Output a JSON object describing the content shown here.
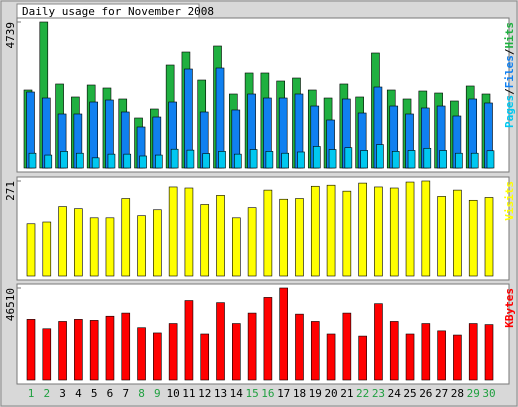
{
  "chart_data": [
    {
      "type": "bar",
      "title": "Daily usage for November 2008",
      "ylim": [
        0,
        4739
      ],
      "yticks": [
        4739
      ],
      "legend_separator": "/",
      "series": [
        {
          "name": "Pages",
          "color": "#00c8f0",
          "values": [
            480,
            420,
            540,
            480,
            330,
            450,
            450,
            390,
            420,
            610,
            580,
            470,
            540,
            450,
            600,
            540,
            480,
            520,
            700,
            600,
            660,
            570,
            760,
            540,
            570,
            640,
            570,
            480,
            480,
            560
          ]
        },
        {
          "name": "Files",
          "color": "#1080f0",
          "values": [
            2467,
            2272,
            1753,
            1753,
            2142,
            2207,
            1818,
            1331,
            1655,
            2142,
            3213,
            1818,
            3246,
            1883,
            2402,
            2272,
            2272,
            2402,
            2012,
            1558,
            2240,
            1785,
            2629,
            2012,
            1753,
            1948,
            2012,
            1688,
            2240,
            2110
          ]
        },
        {
          "name": "Hits",
          "color": "#20b040",
          "values": [
            2532,
            4739,
            2727,
            2305,
            2694,
            2597,
            2240,
            1623,
            1915,
            3343,
            3765,
            2856,
            3960,
            2402,
            3084,
            3084,
            2824,
            2921,
            2532,
            2272,
            2727,
            2305,
            3733,
            2532,
            2240,
            2499,
            2434,
            2175,
            2662,
            2402
          ]
        }
      ]
    },
    {
      "type": "bar",
      "ylim": [
        0,
        271
      ],
      "yticks": [
        271
      ],
      "series": [
        {
          "name": "Visits",
          "color": "#ffff00",
          "values": [
            149,
            154,
            198,
            192,
            166,
            166,
            221,
            172,
            189,
            254,
            251,
            204,
            230,
            166,
            195,
            245,
            219,
            221,
            256,
            259,
            242,
            265,
            254,
            251,
            268,
            271,
            227,
            245,
            216,
            224
          ]
        }
      ]
    },
    {
      "type": "bar",
      "ylim": [
        0,
        46510
      ],
      "yticks": [
        46510
      ],
      "series": [
        {
          "name": "KBytes",
          "color": "#ff0000",
          "values": [
            30654,
            25898,
            29598,
            30654,
            30126,
            32240,
            33826,
            26426,
            23784,
            28541,
            40168,
            23255,
            39111,
            28541,
            33826,
            41754,
            46510,
            33297,
            29598,
            23255,
            33826,
            22198,
            38583,
            29598,
            23255,
            28541,
            24841,
            22726,
            28541,
            28012
          ]
        }
      ],
      "categories": [
        "1",
        "2",
        "3",
        "4",
        "5",
        "6",
        "7",
        "8",
        "9",
        "10",
        "11",
        "12",
        "13",
        "14",
        "15",
        "16",
        "17",
        "18",
        "19",
        "20",
        "21",
        "22",
        "23",
        "24",
        "25",
        "26",
        "27",
        "28",
        "29",
        "30"
      ],
      "category_colors": [
        "#20a040",
        "#20a040",
        "#000000",
        "#000000",
        "#000000",
        "#000000",
        "#000000",
        "#20a040",
        "#20a040",
        "#000000",
        "#000000",
        "#000000",
        "#000000",
        "#000000",
        "#20a040",
        "#20a040",
        "#000000",
        "#000000",
        "#000000",
        "#000000",
        "#000000",
        "#20a040",
        "#20a040",
        "#000000",
        "#000000",
        "#000000",
        "#000000",
        "#000000",
        "#20a040",
        "#20a040"
      ]
    }
  ]
}
